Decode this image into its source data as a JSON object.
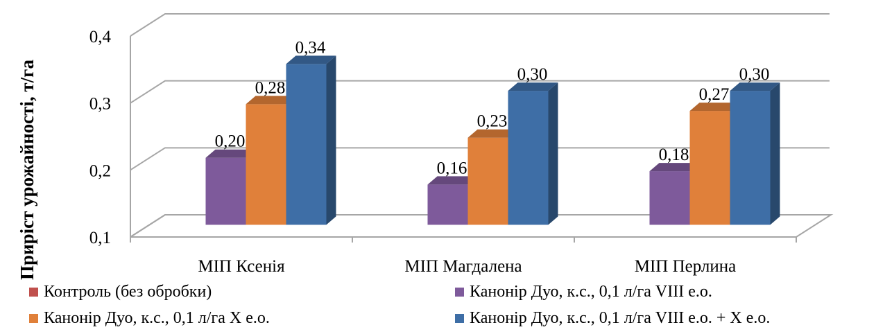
{
  "chart_data": {
    "type": "bar",
    "title": "",
    "xlabel": "",
    "ylabel": "Приріст урожайності, т/га",
    "ylim": [
      0.1,
      0.4
    ],
    "yticks": [
      "0,1",
      "0,2",
      "0,3",
      "0,4"
    ],
    "grid": true,
    "three_d": true,
    "legend_position": "bottom",
    "categories": [
      "МІП Ксенія",
      "МІП Магдалена",
      "МІП Перлина"
    ],
    "series": [
      {
        "name": "Контроль (без обробки)",
        "color": "#c0504d",
        "values": [
          null,
          null,
          null
        ],
        "labels": [
          "",
          "",
          ""
        ]
      },
      {
        "name": "Канонір Дуо, к.с., 0,1 л/га VIII е.о.",
        "color": "#7e5a9b",
        "values": [
          0.2,
          0.16,
          0.18
        ],
        "labels": [
          "0,20",
          "0,16",
          "0,18"
        ]
      },
      {
        "name": "Канонір Дуо, к.с., 0,1 л/га Х е.о.",
        "color": "#e0803a",
        "values": [
          0.28,
          0.23,
          0.27
        ],
        "labels": [
          "0,28",
          "0,23",
          "0,27"
        ]
      },
      {
        "name": "Канонір Дуо, к.с., 0,1 л/га VIII е.о. + Х е.о.",
        "color": "#3e6ea6",
        "values": [
          0.34,
          0.3,
          0.3
        ],
        "labels": [
          "0,34",
          "0,30",
          "0,30"
        ]
      }
    ]
  }
}
